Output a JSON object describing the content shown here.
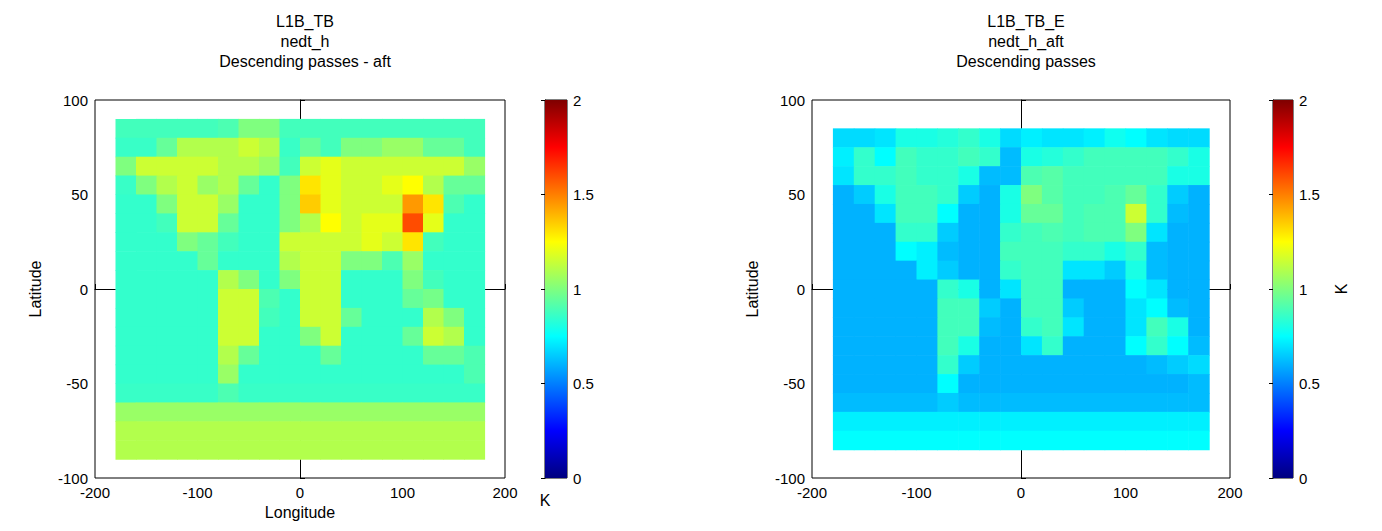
{
  "chart_data": [
    {
      "type": "heatmap",
      "title": [
        "L1B_TB",
        "nedt_h",
        "Descending passes - aft"
      ],
      "xlabel": "Longitude",
      "ylabel": "Latitude",
      "xlim": [
        -200,
        200
      ],
      "ylim": [
        -100,
        100
      ],
      "xticks": [
        -200,
        -100,
        0,
        100,
        200
      ],
      "yticks": [
        -100,
        -50,
        0,
        50,
        100
      ],
      "lon_edges": [
        -180,
        -160,
        -140,
        -120,
        -100,
        -80,
        -60,
        -40,
        -20,
        0,
        20,
        40,
        60,
        80,
        100,
        120,
        140,
        160,
        180
      ],
      "lat_edges": [
        90,
        80,
        70,
        60,
        50,
        40,
        30,
        20,
        10,
        0,
        -10,
        -20,
        -30,
        -40,
        -50,
        -60,
        -70,
        -80,
        -90
      ],
      "values": [
        [
          0.88,
          0.88,
          0.88,
          0.88,
          0.88,
          0.9,
          1.0,
          1.0,
          0.88,
          0.88,
          0.88,
          0.88,
          0.88,
          0.88,
          0.88,
          0.88,
          0.88,
          0.88
        ],
        [
          0.86,
          0.86,
          0.95,
          1.1,
          1.1,
          1.1,
          1.15,
          1.1,
          0.86,
          0.95,
          0.88,
          1.0,
          1.0,
          1.05,
          1.05,
          0.95,
          0.95,
          0.88
        ],
        [
          1.0,
          1.15,
          1.15,
          1.15,
          1.15,
          1.1,
          1.1,
          1.05,
          0.88,
          1.15,
          1.2,
          1.15,
          1.15,
          1.15,
          1.15,
          1.15,
          1.15,
          1.05
        ],
        [
          0.86,
          1.0,
          1.1,
          1.15,
          1.05,
          1.1,
          0.95,
          0.85,
          1.0,
          1.3,
          1.2,
          1.15,
          1.15,
          1.2,
          1.25,
          1.1,
          0.95,
          0.95
        ],
        [
          0.85,
          0.85,
          1.0,
          1.15,
          1.15,
          1.05,
          0.85,
          0.85,
          1.0,
          1.35,
          1.2,
          1.15,
          1.15,
          1.15,
          1.45,
          1.3,
          0.9,
          0.85
        ],
        [
          0.85,
          0.85,
          0.88,
          1.15,
          1.15,
          0.95,
          0.85,
          0.85,
          1.0,
          1.1,
          1.25,
          1.15,
          1.2,
          1.2,
          1.6,
          1.2,
          0.85,
          0.85
        ],
        [
          0.85,
          0.85,
          0.85,
          1.0,
          0.95,
          0.88,
          0.85,
          0.85,
          1.15,
          1.15,
          1.15,
          1.15,
          1.2,
          1.15,
          1.3,
          0.88,
          0.85,
          0.85
        ],
        [
          0.85,
          0.85,
          0.85,
          0.85,
          0.95,
          0.85,
          0.85,
          0.85,
          1.1,
          1.15,
          1.15,
          1.0,
          1.0,
          0.9,
          1.05,
          0.85,
          0.85,
          0.85
        ],
        [
          0.85,
          0.85,
          0.85,
          0.85,
          0.85,
          1.1,
          1.0,
          0.85,
          1.0,
          1.15,
          1.15,
          0.85,
          0.85,
          0.85,
          1.0,
          0.88,
          0.85,
          0.85
        ],
        [
          0.85,
          0.85,
          0.85,
          0.85,
          0.85,
          1.15,
          1.15,
          0.9,
          0.85,
          1.15,
          1.15,
          0.85,
          0.85,
          0.85,
          0.95,
          0.98,
          0.85,
          0.85
        ],
        [
          0.85,
          0.85,
          0.85,
          0.85,
          0.85,
          1.15,
          1.15,
          0.88,
          0.85,
          1.15,
          1.15,
          0.95,
          0.85,
          0.85,
          0.85,
          1.1,
          1.0,
          0.85
        ],
        [
          0.85,
          0.85,
          0.85,
          0.85,
          0.85,
          1.15,
          1.15,
          0.85,
          0.85,
          1.0,
          1.15,
          0.85,
          0.85,
          0.85,
          0.95,
          1.15,
          1.1,
          0.85
        ],
        [
          0.85,
          0.85,
          0.85,
          0.85,
          0.85,
          1.1,
          0.95,
          0.85,
          0.85,
          0.85,
          0.95,
          0.85,
          0.85,
          0.85,
          0.85,
          0.95,
          0.95,
          0.9
        ],
        [
          0.85,
          0.85,
          0.85,
          0.85,
          0.85,
          1.05,
          0.85,
          0.85,
          0.85,
          0.85,
          0.85,
          0.85,
          0.85,
          0.85,
          0.85,
          0.85,
          0.85,
          0.9
        ],
        [
          0.86,
          0.86,
          0.86,
          0.86,
          0.86,
          0.9,
          0.86,
          0.86,
          0.86,
          0.86,
          0.86,
          0.86,
          0.86,
          0.86,
          0.86,
          0.86,
          0.86,
          0.86
        ],
        [
          1.05,
          1.05,
          1.05,
          1.05,
          1.05,
          1.05,
          1.05,
          1.05,
          1.05,
          1.05,
          1.05,
          1.05,
          1.05,
          1.05,
          1.05,
          1.05,
          1.05,
          1.05
        ],
        [
          1.1,
          1.1,
          1.1,
          1.1,
          1.1,
          1.1,
          1.1,
          1.1,
          1.1,
          1.1,
          1.1,
          1.1,
          1.1,
          1.1,
          1.1,
          1.1,
          1.1,
          1.1
        ],
        [
          1.1,
          1.1,
          1.1,
          1.1,
          1.1,
          1.1,
          1.1,
          1.1,
          1.1,
          1.1,
          1.1,
          1.1,
          1.1,
          1.1,
          1.1,
          1.1,
          1.1,
          1.1
        ]
      ],
      "colorbar": {
        "range": [
          0,
          2
        ],
        "ticks": [
          0,
          0.5,
          1,
          1.5,
          2
        ],
        "label": "K"
      }
    },
    {
      "type": "heatmap",
      "title": [
        "L1B_TB_E",
        "nedt_h_aft",
        "Descending passes"
      ],
      "ylabel": "Latitude",
      "xlim": [
        -200,
        200
      ],
      "ylim": [
        -100,
        100
      ],
      "xticks": [
        -200,
        -100,
        0,
        100,
        200
      ],
      "yticks": [
        -100,
        -50,
        0,
        50,
        100
      ],
      "lon_edges": [
        -180,
        -160,
        -140,
        -120,
        -100,
        -80,
        -60,
        -40,
        -20,
        0,
        20,
        40,
        60,
        80,
        100,
        120,
        140,
        160,
        180
      ],
      "lat_edges": [
        85,
        75,
        65,
        55,
        45,
        35,
        25,
        15,
        5,
        -5,
        -15,
        -25,
        -35,
        -45,
        -55,
        -65,
        -75,
        -85
      ],
      "values": [
        [
          0.68,
          0.68,
          0.7,
          0.8,
          0.8,
          0.82,
          0.85,
          0.8,
          0.68,
          0.72,
          0.7,
          0.7,
          0.72,
          0.78,
          0.75,
          0.7,
          0.68,
          0.68
        ],
        [
          0.72,
          0.85,
          0.75,
          0.88,
          0.85,
          0.85,
          0.88,
          0.85,
          0.62,
          0.8,
          0.82,
          0.85,
          0.88,
          0.88,
          0.88,
          0.88,
          0.85,
          0.8
        ],
        [
          0.7,
          0.85,
          0.85,
          0.88,
          0.85,
          0.85,
          0.8,
          0.62,
          0.62,
          0.9,
          0.92,
          0.88,
          0.88,
          0.88,
          0.88,
          0.88,
          0.8,
          0.8
        ],
        [
          0.6,
          0.65,
          0.8,
          0.88,
          0.88,
          0.85,
          0.65,
          0.6,
          0.8,
          1.0,
          0.92,
          0.88,
          0.88,
          0.9,
          0.95,
          0.85,
          0.65,
          0.6
        ],
        [
          0.6,
          0.6,
          0.7,
          0.88,
          0.88,
          0.75,
          0.6,
          0.6,
          0.8,
          0.95,
          0.95,
          0.88,
          0.9,
          0.9,
          1.15,
          0.85,
          0.62,
          0.6
        ],
        [
          0.6,
          0.6,
          0.6,
          0.85,
          0.85,
          0.65,
          0.6,
          0.6,
          0.85,
          0.88,
          0.9,
          0.88,
          0.9,
          0.9,
          1.0,
          0.7,
          0.6,
          0.6
        ],
        [
          0.6,
          0.6,
          0.6,
          0.75,
          0.72,
          0.62,
          0.6,
          0.6,
          0.88,
          0.88,
          0.88,
          0.85,
          0.85,
          0.8,
          0.85,
          0.62,
          0.6,
          0.6
        ],
        [
          0.6,
          0.6,
          0.6,
          0.6,
          0.72,
          0.65,
          0.6,
          0.6,
          0.85,
          0.88,
          0.88,
          0.7,
          0.7,
          0.65,
          0.8,
          0.62,
          0.6,
          0.6
        ],
        [
          0.6,
          0.6,
          0.6,
          0.6,
          0.6,
          0.85,
          0.8,
          0.6,
          0.7,
          0.88,
          0.88,
          0.6,
          0.6,
          0.6,
          0.75,
          0.7,
          0.6,
          0.6
        ],
        [
          0.6,
          0.6,
          0.6,
          0.6,
          0.6,
          0.88,
          0.88,
          0.65,
          0.6,
          0.88,
          0.88,
          0.65,
          0.6,
          0.6,
          0.7,
          0.75,
          0.62,
          0.6
        ],
        [
          0.6,
          0.6,
          0.6,
          0.6,
          0.6,
          0.88,
          0.88,
          0.62,
          0.6,
          0.85,
          0.88,
          0.7,
          0.6,
          0.6,
          0.7,
          0.88,
          0.8,
          0.6
        ],
        [
          0.6,
          0.6,
          0.6,
          0.6,
          0.6,
          0.88,
          0.8,
          0.6,
          0.6,
          0.7,
          0.85,
          0.6,
          0.6,
          0.6,
          0.75,
          0.85,
          0.75,
          0.62
        ],
        [
          0.6,
          0.6,
          0.6,
          0.6,
          0.6,
          0.85,
          0.65,
          0.6,
          0.6,
          0.6,
          0.6,
          0.6,
          0.6,
          0.6,
          0.6,
          0.62,
          0.65,
          0.68
        ],
        [
          0.6,
          0.6,
          0.6,
          0.6,
          0.6,
          0.75,
          0.6,
          0.6,
          0.6,
          0.6,
          0.6,
          0.6,
          0.6,
          0.6,
          0.6,
          0.6,
          0.6,
          0.62
        ],
        [
          0.62,
          0.62,
          0.62,
          0.62,
          0.62,
          0.65,
          0.62,
          0.62,
          0.62,
          0.62,
          0.62,
          0.62,
          0.62,
          0.62,
          0.62,
          0.62,
          0.62,
          0.62
        ],
        [
          0.72,
          0.72,
          0.72,
          0.72,
          0.72,
          0.72,
          0.72,
          0.72,
          0.72,
          0.72,
          0.72,
          0.72,
          0.72,
          0.72,
          0.72,
          0.72,
          0.72,
          0.72
        ],
        [
          0.75,
          0.75,
          0.75,
          0.75,
          0.75,
          0.75,
          0.75,
          0.75,
          0.75,
          0.75,
          0.75,
          0.75,
          0.75,
          0.75,
          0.75,
          0.75,
          0.75,
          0.75
        ]
      ],
      "colorbar": {
        "range": [
          0,
          2
        ],
        "ticks": [
          0,
          0.5,
          1,
          1.5,
          2
        ],
        "label": "K"
      }
    }
  ]
}
